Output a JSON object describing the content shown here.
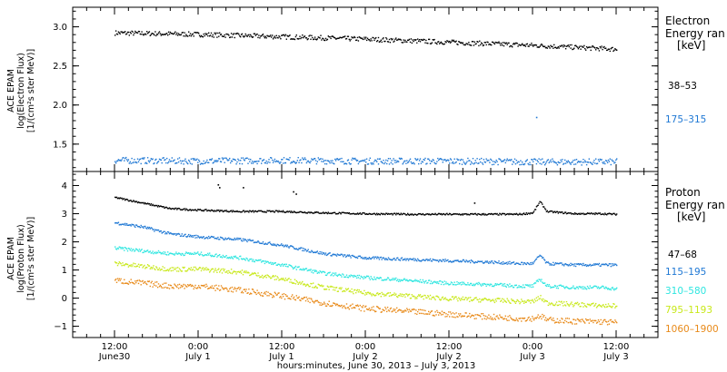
{
  "chart_data": [
    {
      "type": "scatter",
      "panel": "electron",
      "ylabel_lines": [
        "ACE EPAM",
        "log(Electron Flux)",
        "[1/(cm²s ster MeV)]"
      ],
      "ylim": [
        1.15,
        3.25
      ],
      "yticks": [
        1.5,
        2.0,
        2.5,
        3.0
      ],
      "ytick_labels": [
        "1.5",
        "2.0",
        "2.5",
        "3.0"
      ],
      "legend_title": [
        "Electron",
        "Energy ran",
        "[keV]"
      ],
      "series": [
        {
          "name": "38–53",
          "color": "#000000",
          "x": [
            0,
            12,
            24,
            36,
            48,
            60,
            72
          ],
          "y": [
            2.93,
            2.91,
            2.88,
            2.85,
            2.81,
            2.77,
            2.72
          ],
          "noise": 0.03
        },
        {
          "name": "175–315",
          "color": "#1f78d4",
          "x": [
            0,
            12,
            24,
            36,
            48,
            60,
            72
          ],
          "y": [
            1.3,
            1.29,
            1.3,
            1.29,
            1.29,
            1.28,
            1.28
          ],
          "noise": 0.04
        }
      ],
      "outliers": [
        {
          "x": 60.5,
          "y": 1.85,
          "color": "#1f78d4"
        }
      ]
    },
    {
      "type": "scatter",
      "panel": "proton",
      "ylabel_lines": [
        "ACE EPAM",
        "log(Proton Flux)",
        "[1/(cm²s ster MeV)]"
      ],
      "ylim": [
        -1.4,
        4.5
      ],
      "yticks": [
        -1,
        0,
        1,
        2,
        3,
        4
      ],
      "ytick_labels": [
        "−1",
        "0",
        "1",
        "2",
        "3",
        "4"
      ],
      "legend_title": [
        "Proton",
        "Energy ran",
        "[keV]"
      ],
      "series": [
        {
          "name": "47–68",
          "color": "#000000",
          "x": [
            0,
            4,
            8,
            12,
            18,
            24,
            30,
            36,
            42,
            48,
            54,
            58,
            60,
            61,
            62,
            66,
            70,
            72
          ],
          "y": [
            3.6,
            3.4,
            3.2,
            3.15,
            3.1,
            3.1,
            3.05,
            3.02,
            3.0,
            3.0,
            3.0,
            3.0,
            3.05,
            3.45,
            3.1,
            3.02,
            3.02,
            3.0
          ],
          "noise": 0.03
        },
        {
          "name": "115–195",
          "color": "#1f78d4",
          "x": [
            0,
            4,
            8,
            12,
            18,
            24,
            30,
            36,
            42,
            48,
            54,
            58,
            60,
            61,
            62,
            66,
            70,
            72
          ],
          "y": [
            2.7,
            2.55,
            2.3,
            2.2,
            2.1,
            1.9,
            1.6,
            1.45,
            1.4,
            1.35,
            1.3,
            1.25,
            1.25,
            1.55,
            1.25,
            1.2,
            1.2,
            1.2
          ],
          "noise": 0.05
        },
        {
          "name": "310–580",
          "color": "#2ee6e0",
          "x": [
            0,
            4,
            8,
            12,
            18,
            24,
            30,
            36,
            42,
            48,
            54,
            58,
            60,
            61,
            62,
            66,
            70,
            72
          ],
          "y": [
            1.8,
            1.7,
            1.6,
            1.6,
            1.45,
            1.2,
            0.9,
            0.75,
            0.65,
            0.55,
            0.5,
            0.45,
            0.45,
            0.7,
            0.45,
            0.4,
            0.4,
            0.35
          ],
          "noise": 0.06
        },
        {
          "name": "795–1193",
          "color": "#c8e81a",
          "x": [
            0,
            4,
            8,
            12,
            18,
            24,
            30,
            36,
            42,
            48,
            54,
            58,
            60,
            61,
            62,
            66,
            70,
            72
          ],
          "y": [
            1.25,
            1.15,
            1.05,
            1.05,
            0.95,
            0.7,
            0.4,
            0.2,
            0.1,
            0.0,
            -0.05,
            -0.1,
            -0.1,
            0.05,
            -0.15,
            -0.2,
            -0.25,
            -0.25
          ],
          "noise": 0.08
        },
        {
          "name": "1060–1900",
          "color": "#e88a1a",
          "x": [
            0,
            4,
            8,
            12,
            18,
            24,
            30,
            36,
            42,
            48,
            54,
            58,
            60,
            61,
            62,
            66,
            70,
            72
          ],
          "y": [
            0.65,
            0.55,
            0.45,
            0.45,
            0.3,
            0.1,
            -0.15,
            -0.35,
            -0.45,
            -0.55,
            -0.65,
            -0.7,
            -0.7,
            -0.6,
            -0.75,
            -0.8,
            -0.82,
            -0.85
          ],
          "noise": 0.1
        }
      ],
      "outliers": [
        {
          "x": 14.8,
          "y": 4.05,
          "color": "#000000"
        },
        {
          "x": 15.0,
          "y": 3.95,
          "color": "#000000"
        },
        {
          "x": 18.4,
          "y": 3.95,
          "color": "#000000"
        },
        {
          "x": 25.6,
          "y": 3.8,
          "color": "#000000"
        },
        {
          "x": 26.0,
          "y": 3.72,
          "color": "#000000"
        },
        {
          "x": 51.6,
          "y": 3.4,
          "color": "#000000"
        }
      ]
    }
  ],
  "x_axis": {
    "xlim": [
      -6,
      78
    ],
    "tick_positions": [
      0,
      12,
      24,
      36,
      48,
      60,
      72
    ],
    "tick_labels": [
      [
        "12:00",
        "June30"
      ],
      [
        "0:00",
        "July 1"
      ],
      [
        "12:00",
        "July 1"
      ],
      [
        "0:00",
        "July 2"
      ],
      [
        "12:00",
        "July 2"
      ],
      [
        "0:00",
        "July 3"
      ],
      [
        "12:00",
        "July 3"
      ]
    ],
    "xlabel": "hours:minutes, June 30, 2013 – July  3, 2013"
  }
}
